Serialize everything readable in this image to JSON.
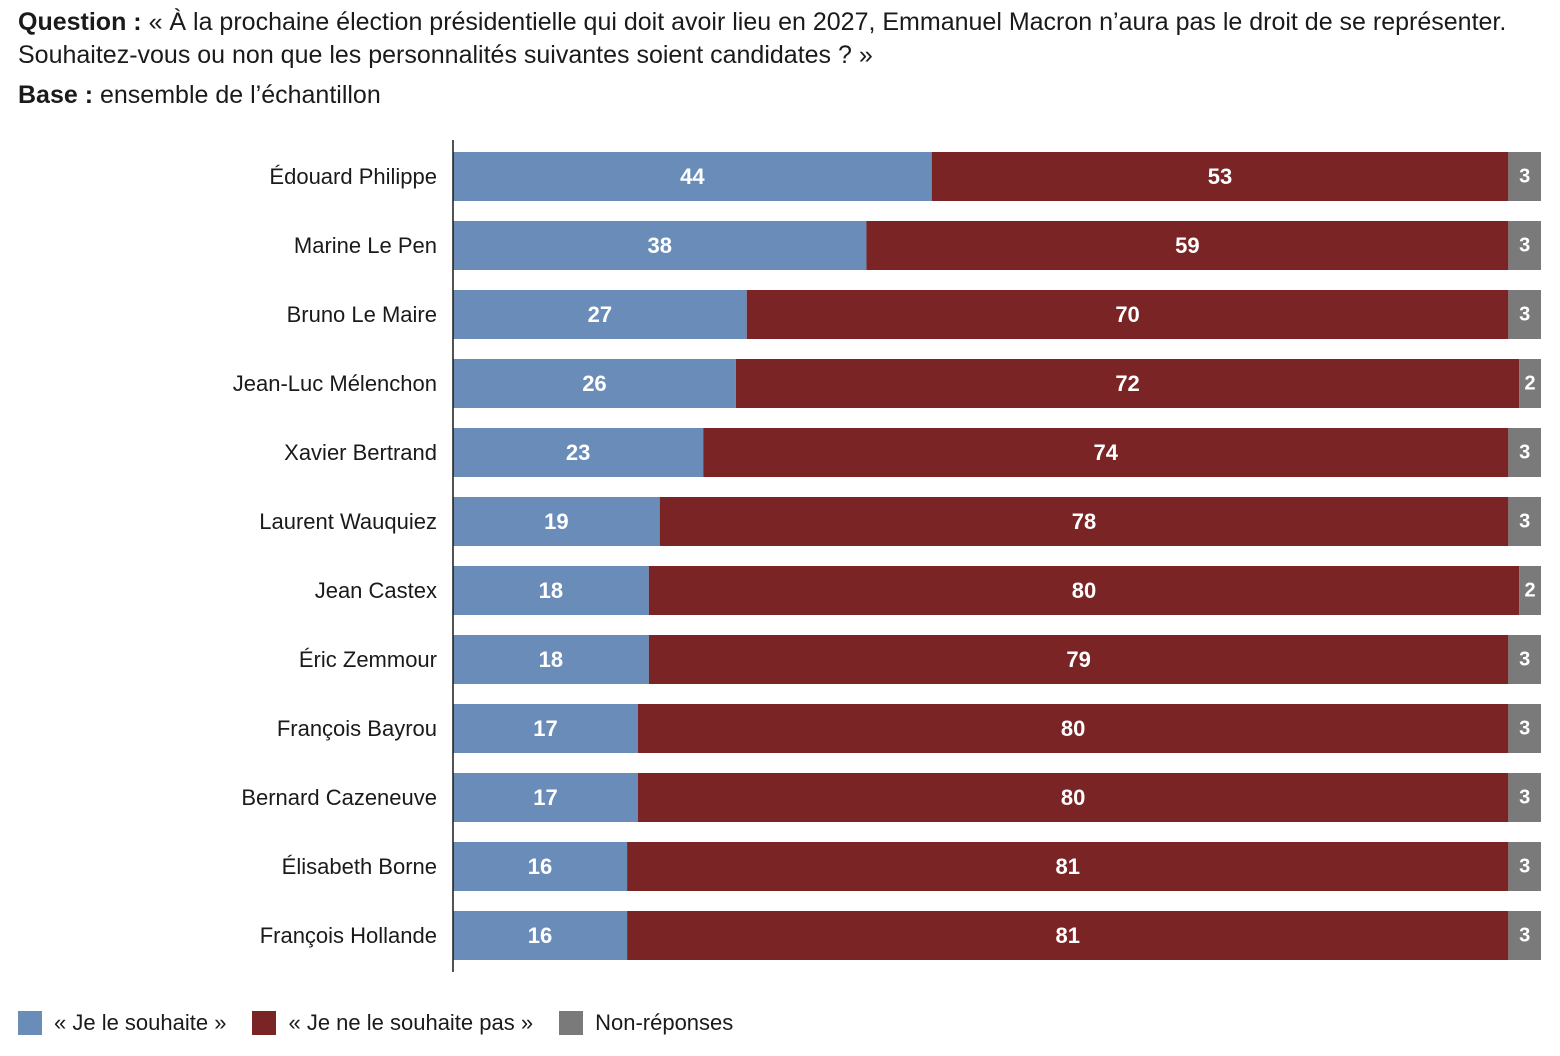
{
  "header": {
    "question_label": "Question :",
    "question_text": "« À la prochaine élection présidentielle qui doit avoir lieu en 2027, Emmanuel Macron n’aura pas le droit de se représenter. Souhaitez-vous ou non que les personnalités suivantes soient candidates ? »",
    "base_label": "Base :",
    "base_text": "ensemble de l’échantillon"
  },
  "colors": {
    "yes": "#6a8cb8",
    "no": "#7a2426",
    "nr": "#7a7a7a"
  },
  "chart_data": {
    "type": "bar",
    "orientation": "horizontal",
    "stacked": true,
    "categories": [
      "Édouard Philippe",
      "Marine Le Pen",
      "Bruno Le Maire",
      "Jean-Luc Mélenchon",
      "Xavier Bertrand",
      "Laurent Wauquiez",
      "Jean Castex",
      "Éric Zemmour",
      "François Bayrou",
      "Bernard Cazeneuve",
      "Élisabeth Borne",
      "François Hollande"
    ],
    "series": [
      {
        "name": "« Je le souhaite »",
        "values": [
          44,
          38,
          27,
          26,
          23,
          19,
          18,
          18,
          17,
          17,
          16,
          16
        ]
      },
      {
        "name": "« Je ne le souhaite pas »",
        "values": [
          53,
          59,
          70,
          72,
          74,
          78,
          80,
          79,
          80,
          80,
          81,
          81
        ]
      },
      {
        "name": "Non-réponses",
        "values": [
          3,
          3,
          3,
          2,
          3,
          3,
          2,
          3,
          3,
          3,
          3,
          3
        ]
      }
    ],
    "xlim": [
      0,
      100
    ],
    "grid": false,
    "legend_position": "bottom-left"
  }
}
